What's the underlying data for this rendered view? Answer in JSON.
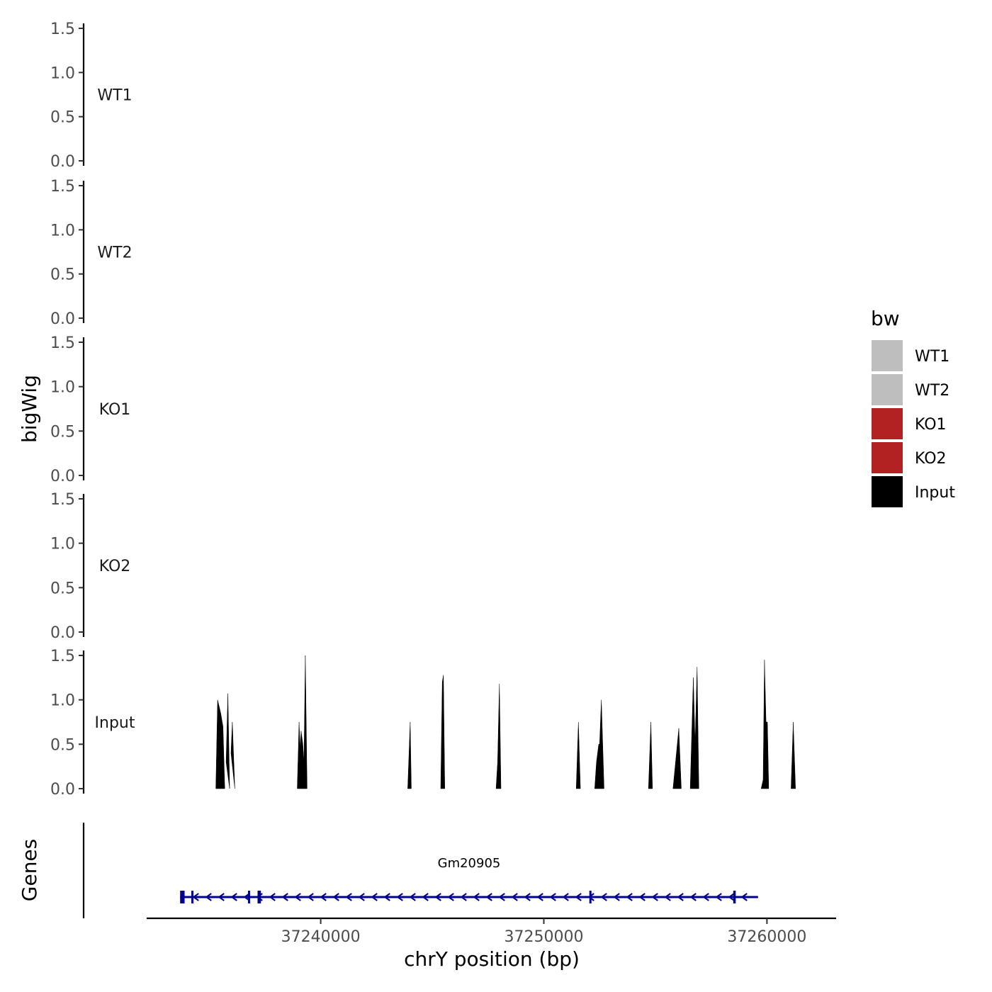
{
  "chart_data": {
    "type": "area",
    "ylabel": "bigWig",
    "genes_label": "Genes",
    "xlabel": "chrY position (bp)",
    "xlim": [
      37232200,
      37263100
    ],
    "x_ticks": [
      37240000,
      37250000,
      37260000
    ],
    "x_tick_labels": [
      "37240000",
      "37250000",
      "37260000"
    ],
    "ylim": [
      0,
      1.5
    ],
    "y_ticks": [
      0,
      0.5,
      1.0,
      1.5
    ],
    "y_tick_labels": [
      "0.0",
      "0.5",
      "1.0",
      "1.5"
    ],
    "legend": {
      "title": "bw",
      "position": "right",
      "entries": [
        {
          "label": "WT1",
          "color": "#bebebe"
        },
        {
          "label": "WT2",
          "color": "#bebebe"
        },
        {
          "label": "KO1",
          "color": "#b22222"
        },
        {
          "label": "KO2",
          "color": "#b22222"
        },
        {
          "label": "Input",
          "color": "#000000"
        }
      ]
    },
    "series": [
      {
        "name": "WT1",
        "color": "#bebebe",
        "points": []
      },
      {
        "name": "WT2",
        "color": "#bebebe",
        "points": []
      },
      {
        "name": "KO1",
        "color": "#b22222",
        "points": []
      },
      {
        "name": "KO2",
        "color": "#b22222",
        "points": []
      },
      {
        "name": "Input",
        "color": "#000000",
        "points": [
          [
            37235300,
            0
          ],
          [
            37235380,
            1.0
          ],
          [
            37235520,
            0.85
          ],
          [
            37235620,
            0.7
          ],
          [
            37235700,
            0
          ],
          [
            37235760,
            0.3
          ],
          [
            37235840,
            1.07
          ],
          [
            37235920,
            0
          ],
          [
            37235980,
            0.4
          ],
          [
            37236040,
            0.75
          ],
          [
            37236150,
            0
          ],
          [
            37238950,
            0
          ],
          [
            37239030,
            0.75
          ],
          [
            37239080,
            0.45
          ],
          [
            37239120,
            0.65
          ],
          [
            37239200,
            0.5
          ],
          [
            37239250,
            0.3
          ],
          [
            37239310,
            1.5
          ],
          [
            37239390,
            0
          ],
          [
            37243900,
            0
          ],
          [
            37244010,
            0.75
          ],
          [
            37244060,
            0
          ],
          [
            37245380,
            0
          ],
          [
            37245450,
            1.2
          ],
          [
            37245500,
            1.28
          ],
          [
            37245560,
            0
          ],
          [
            37247860,
            0
          ],
          [
            37247930,
            0.3
          ],
          [
            37248010,
            1.18
          ],
          [
            37248080,
            0
          ],
          [
            37251450,
            0
          ],
          [
            37251550,
            0.75
          ],
          [
            37251640,
            0
          ],
          [
            37252280,
            0
          ],
          [
            37252360,
            0.3
          ],
          [
            37252460,
            0.5
          ],
          [
            37252500,
            0.5
          ],
          [
            37252580,
            1.0
          ],
          [
            37252700,
            0
          ],
          [
            37254690,
            0
          ],
          [
            37254800,
            0.75
          ],
          [
            37254870,
            0
          ],
          [
            37255790,
            0
          ],
          [
            37256050,
            0.68
          ],
          [
            37256160,
            0
          ],
          [
            37256560,
            0
          ],
          [
            37256700,
            1.25
          ],
          [
            37256780,
            0.5
          ],
          [
            37256870,
            1.37
          ],
          [
            37256950,
            0
          ],
          [
            37259740,
            0
          ],
          [
            37259830,
            0.1
          ],
          [
            37259890,
            1.45
          ],
          [
            37259960,
            0.75
          ],
          [
            37260020,
            0.75
          ],
          [
            37260080,
            0
          ],
          [
            37261080,
            0
          ],
          [
            37261180,
            0.75
          ],
          [
            37261280,
            0
          ]
        ]
      }
    ],
    "gene": {
      "name": "Gm20905",
      "strand": "-",
      "color": "#00008b",
      "start": 37233700,
      "end": 37259600,
      "exons": [
        [
          37233700,
          37233900
        ],
        [
          37234200,
          37234270
        ],
        [
          37236740,
          37236800
        ],
        [
          37237170,
          37237320
        ],
        [
          37252040,
          37252070
        ],
        [
          37258490,
          37258600
        ]
      ]
    }
  }
}
